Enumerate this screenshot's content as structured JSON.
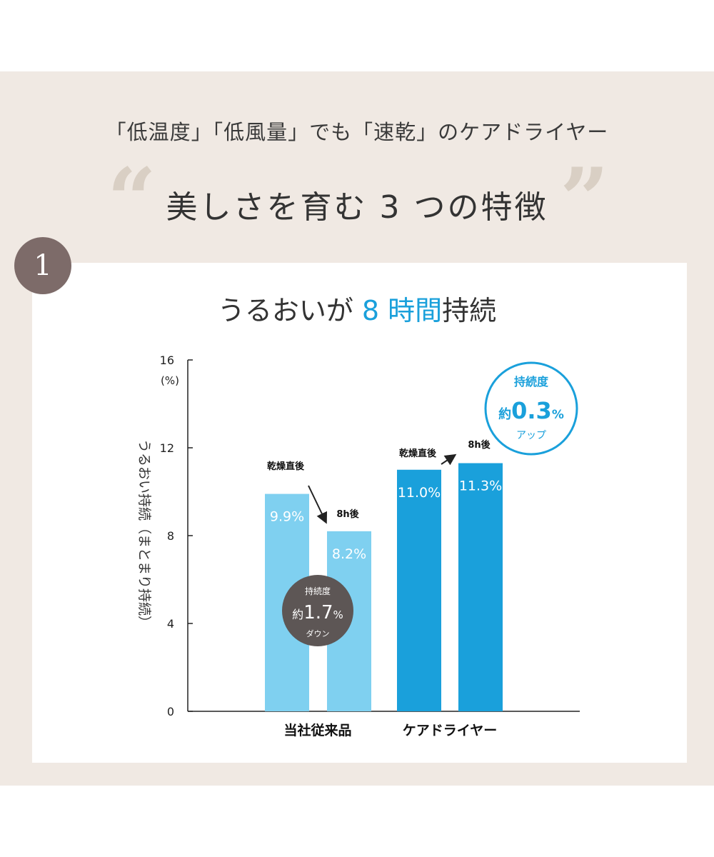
{
  "header": {
    "subtitle": "「低温度」「低風量」でも「速乾」のケアドライヤー",
    "quote_open": "“",
    "headline": "美しさを育む 3 つの特徴",
    "quote_close": "”",
    "feature_number": "1"
  },
  "colors": {
    "band": "#f0e9e3",
    "badge": "#7d6b69",
    "accent": "#1aa0db",
    "bar_light": "#7fd0f0",
    "bar_dark": "#1aa0db",
    "callout_dark": "#5d5655"
  },
  "chart_data": {
    "type": "bar",
    "title_parts": {
      "before": "うるおいが ",
      "highlight": "8 時間",
      "after": "持続"
    },
    "ylabel": "うるおい持続（まとまり持続）",
    "yunit": "(%)",
    "ylim": [
      0,
      16
    ],
    "yticks": [
      0,
      4,
      8,
      12,
      16
    ],
    "categories": [
      "当社従来品",
      "ケアドライヤー"
    ],
    "bars": [
      {
        "category": "当社従来品",
        "label": "乾燥直後",
        "value": 9.9,
        "value_label": "9.9%",
        "shade": "light"
      },
      {
        "category": "当社従来品",
        "label": "8h後",
        "value": 8.2,
        "value_label": "8.2%",
        "shade": "light"
      },
      {
        "category": "ケアドライヤー",
        "label": "乾燥直後",
        "value": 11.0,
        "value_label": "11.0%",
        "shade": "dark"
      },
      {
        "category": "ケアドライヤー",
        "label": "8h後",
        "value": 11.3,
        "value_label": "11.3%",
        "shade": "dark"
      }
    ],
    "callouts": [
      {
        "top": "持続度",
        "prefix": "約",
        "value": "1.7",
        "unit": "%",
        "bottom": "ダウン",
        "style": "dark"
      },
      {
        "top": "持続度",
        "prefix": "約",
        "value": "0.3",
        "unit": "%",
        "bottom": "アップ",
        "style": "outline"
      }
    ],
    "grid": false,
    "legend": "none"
  }
}
